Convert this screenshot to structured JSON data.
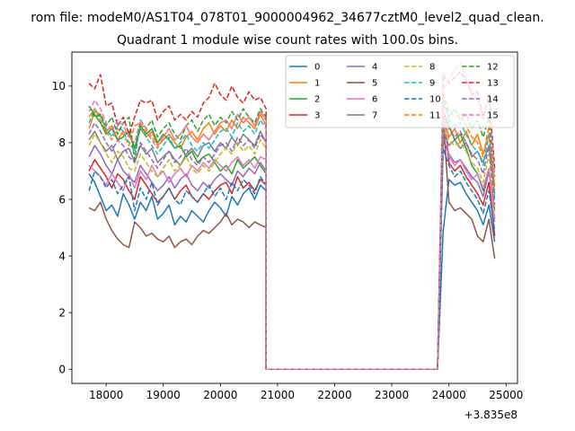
{
  "suptitle": "rom file: modeM0/AS1T04_078T01_9000004962_34677cztM0_level2_quad_clean.",
  "chart_data": {
    "type": "line",
    "title": "Quadrant 1 module wise count rates with 100.0s bins.",
    "xlabel": "",
    "ylabel": "",
    "x_offset_label": "+3.835e8",
    "x_range_data": [
      17700,
      24900
    ],
    "xlim": [
      17400,
      25200
    ],
    "ylim": [
      -0.5,
      11.2
    ],
    "xticks": [
      18000,
      19000,
      20000,
      21000,
      22000,
      23000,
      24000,
      25000
    ],
    "yticks": [
      0,
      2,
      4,
      6,
      8,
      10
    ],
    "grid": false,
    "legend_position": "upper-right",
    "gap_x_range": [
      20800,
      23800
    ],
    "series": [
      {
        "name": "0",
        "color": "#1f77b4",
        "dash": "solid",
        "before": [
          6.9,
          6.6,
          6.1,
          5.6,
          5.8,
          5.4,
          6.2,
          5.8,
          5.3,
          5.9,
          5.6,
          6.1,
          5.3,
          5.5,
          5.8,
          5.1,
          5.4,
          5.2,
          5.6,
          5.4,
          5.2,
          5.6,
          5.9,
          5.7,
          5.4,
          6.1,
          5.8,
          6.2,
          6.4,
          6.0,
          6.5,
          6.3
        ],
        "after": [
          4.9,
          6.7,
          6.5,
          6.6,
          6.2,
          5.9,
          5.6,
          5.1,
          5.8,
          4.5
        ]
      },
      {
        "name": "1",
        "color": "#ff7f0e",
        "dash": "solid",
        "before": [
          8.5,
          9.1,
          9.0,
          8.4,
          8.6,
          8.1,
          8.4,
          8.3,
          7.8,
          8.5,
          8.2,
          8.4,
          7.9,
          8.1,
          8.3,
          8.0,
          7.8,
          8.2,
          8.4,
          8.1,
          8.5,
          8.7,
          8.3,
          8.6,
          8.4,
          8.8,
          8.5,
          8.9,
          8.7,
          8.5,
          9.0,
          8.6
        ],
        "after": [
          9.0,
          8.2,
          8.5,
          8.0,
          8.4,
          7.9,
          8.3,
          7.6,
          8.3,
          6.5
        ]
      },
      {
        "name": "2",
        "color": "#2ca02c",
        "dash": "solid",
        "before": [
          9.3,
          9.0,
          8.7,
          8.3,
          8.5,
          8.1,
          8.2,
          8.4,
          7.8,
          8.6,
          8.3,
          8.5,
          8.0,
          8.3,
          8.1,
          7.8,
          7.9,
          7.5,
          7.7,
          7.3,
          7.5,
          7.6,
          7.3,
          7.0,
          7.2,
          6.9,
          7.4,
          7.1,
          7.3,
          7.5,
          7.2,
          6.9
        ],
        "after": [
          9.1,
          8.6,
          8.1,
          8.3,
          7.8,
          7.2,
          6.9,
          6.3,
          7.0,
          5.6
        ]
      },
      {
        "name": "3",
        "color": "#d62728",
        "dash": "solid",
        "before": [
          7.0,
          7.4,
          7.1,
          6.8,
          6.4,
          6.9,
          6.7,
          6.3,
          6.0,
          6.8,
          6.5,
          6.2,
          5.9,
          6.1,
          6.4,
          6.0,
          6.3,
          6.5,
          6.1,
          5.9,
          6.2,
          6.0,
          6.3,
          6.5,
          6.6,
          6.2,
          6.8,
          6.4,
          6.6,
          6.3,
          6.7,
          6.5
        ],
        "after": [
          9.3,
          7.3,
          7.0,
          7.2,
          6.8,
          6.5,
          6.2,
          5.8,
          6.6,
          4.7
        ]
      },
      {
        "name": "4",
        "color": "#9467bd",
        "dash": "solid",
        "before": [
          7.5,
          7.9,
          7.6,
          7.2,
          6.9,
          7.4,
          7.0,
          6.8,
          6.6,
          7.2,
          6.9,
          6.6,
          6.3,
          6.5,
          6.8,
          6.4,
          6.7,
          6.9,
          6.5,
          6.3,
          6.6,
          6.4,
          6.7,
          6.9,
          6.7,
          6.5,
          7.0,
          6.8,
          7.1,
          6.9,
          7.3,
          7.0
        ],
        "after": [
          8.1,
          7.6,
          7.3,
          7.4,
          7.1,
          6.8,
          6.6,
          6.1,
          7.0,
          5.3
        ]
      },
      {
        "name": "5",
        "color": "#8c564b",
        "dash": "solid",
        "before": [
          5.7,
          5.6,
          5.9,
          5.3,
          4.9,
          4.6,
          4.4,
          4.3,
          5.2,
          5.0,
          4.7,
          4.8,
          4.6,
          4.5,
          4.7,
          4.3,
          4.5,
          4.6,
          4.4,
          4.7,
          4.9,
          4.8,
          5.0,
          5.2,
          5.5,
          5.1,
          5.3,
          5.2,
          5.0,
          5.2,
          5.1,
          5.0
        ],
        "after": [
          8.8,
          5.9,
          5.6,
          5.7,
          5.5,
          5.3,
          4.7,
          4.5,
          5.3,
          3.9
        ]
      },
      {
        "name": "6",
        "color": "#e377c2",
        "dash": "solid",
        "before": [
          7.2,
          7.0,
          6.8,
          6.5,
          6.9,
          6.6,
          6.3,
          6.9,
          6.4,
          7.0,
          6.7,
          7.2,
          6.8,
          7.0,
          6.6,
          6.9,
          7.1,
          6.8,
          7.2,
          7.0,
          7.3,
          7.1,
          7.4,
          7.2,
          7.0,
          7.3,
          7.5,
          7.2,
          7.4,
          7.1,
          7.5,
          7.4
        ],
        "after": [
          9.2,
          7.5,
          7.2,
          7.4,
          7.0,
          6.7,
          6.9,
          6.4,
          7.1,
          5.2
        ]
      },
      {
        "name": "7",
        "color": "#7f7f7f",
        "dash": "solid",
        "before": [
          8.1,
          8.4,
          8.0,
          7.7,
          7.9,
          7.4,
          7.7,
          7.8,
          7.3,
          7.9,
          7.6,
          7.8,
          7.3,
          7.5,
          7.7,
          7.4,
          7.2,
          7.6,
          7.8,
          7.5,
          7.9,
          8.0,
          7.7,
          8.0,
          7.8,
          8.2,
          7.9,
          8.3,
          8.1,
          7.9,
          8.4,
          8.0
        ],
        "after": [
          8.4,
          7.9,
          8.1,
          7.8,
          8.0,
          7.5,
          7.7,
          7.3,
          7.9,
          6.2
        ]
      },
      {
        "name": "8",
        "color": "#bcbd22",
        "dash": "dashed",
        "before": [
          7.9,
          8.3,
          8.0,
          7.6,
          7.3,
          7.7,
          7.5,
          7.1,
          7.0,
          7.6,
          7.3,
          7.0,
          6.8,
          7.1,
          7.4,
          7.0,
          7.2,
          7.5,
          7.1,
          6.9,
          7.2,
          7.0,
          7.3,
          7.6,
          7.8,
          7.6,
          8.0,
          7.7,
          7.9,
          7.6,
          8.1,
          7.8
        ],
        "after": [
          8.6,
          8.1,
          7.9,
          8.0,
          7.7,
          7.3,
          7.1,
          6.6,
          7.6,
          5.6
        ]
      },
      {
        "name": "9",
        "color": "#17becf",
        "dash": "dashed",
        "before": [
          8.7,
          9.2,
          8.9,
          8.5,
          8.2,
          8.6,
          8.4,
          8.0,
          7.7,
          8.5,
          8.2,
          7.9,
          7.6,
          7.9,
          8.2,
          7.8,
          8.0,
          8.3,
          7.9,
          7.7,
          8.0,
          7.8,
          8.1,
          8.4,
          8.5,
          8.2,
          8.7,
          8.4,
          8.6,
          8.3,
          8.8,
          8.5
        ],
        "after": [
          9.5,
          8.8,
          8.6,
          8.7,
          8.3,
          7.9,
          7.7,
          7.2,
          8.3,
          6.0
        ]
      },
      {
        "name": "10",
        "color": "#1f77b4",
        "dash": "dashed",
        "before": [
          6.3,
          7.0,
          6.8,
          6.4,
          6.7,
          6.2,
          6.5,
          6.8,
          5.6,
          6.4,
          6.0,
          6.6,
          5.8,
          6.1,
          6.4,
          6.0,
          5.8,
          6.3,
          6.1,
          5.9,
          6.2,
          6.5,
          6.1,
          6.4,
          6.0,
          6.6,
          6.3,
          6.7,
          6.5,
          6.2,
          6.8,
          6.5
        ],
        "after": [
          7.8,
          7.2,
          6.8,
          7.0,
          6.6,
          6.3,
          6.0,
          5.5,
          6.3,
          4.9
        ]
      },
      {
        "name": "11",
        "color": "#ff7f0e",
        "dash": "dashed",
        "before": [
          8.9,
          9.2,
          8.8,
          8.4,
          8.1,
          8.5,
          8.3,
          7.9,
          8.6,
          8.7,
          8.4,
          8.1,
          7.8,
          8.2,
          8.5,
          8.1,
          8.3,
          8.6,
          8.2,
          8.0,
          8.3,
          8.1,
          8.4,
          8.7,
          8.8,
          8.5,
          9.0,
          8.7,
          8.9,
          8.6,
          9.1,
          8.8
        ],
        "after": [
          9.8,
          9.1,
          8.9,
          9.0,
          8.6,
          8.2,
          8.0,
          7.5,
          8.6,
          6.3
        ]
      },
      {
        "name": "12",
        "color": "#2ca02c",
        "dash": "dashed",
        "before": [
          9.3,
          8.9,
          9.0,
          8.6,
          8.9,
          8.3,
          8.7,
          8.9,
          7.4,
          8.8,
          8.5,
          8.8,
          8.2,
          8.5,
          8.7,
          8.3,
          8.1,
          8.6,
          8.8,
          8.4,
          8.8,
          9.0,
          8.6,
          8.9,
          8.7,
          9.1,
          8.8,
          9.2,
          8.9,
          8.7,
          9.2,
          8.9
        ],
        "after": [
          9.6,
          8.9,
          9.2,
          8.8,
          9.0,
          8.5,
          8.8,
          8.2,
          8.9,
          6.8
        ]
      },
      {
        "name": "13",
        "color": "#d62728",
        "dash": "dashed",
        "before": [
          10.1,
          9.9,
          10.4,
          9.3,
          9.4,
          8.6,
          8.9,
          8.3,
          8.9,
          9.5,
          9.4,
          9.5,
          8.8,
          9.1,
          9.3,
          8.8,
          9.0,
          8.8,
          9.1,
          8.9,
          9.4,
          9.6,
          10.1,
          9.7,
          9.5,
          10.0,
          9.6,
          9.4,
          9.8,
          9.5,
          9.6,
          9.2
        ],
        "after": [
          10.4,
          10.1,
          10.3,
          10.5,
          10.2,
          9.7,
          9.8,
          8.9,
          9.7,
          7.1
        ]
      },
      {
        "name": "14",
        "color": "#9467bd",
        "dash": "dashed",
        "before": [
          8.3,
          8.7,
          8.4,
          8.0,
          7.7,
          8.1,
          7.9,
          7.5,
          7.3,
          8.0,
          7.7,
          7.4,
          7.1,
          7.4,
          7.7,
          7.3,
          7.5,
          7.8,
          7.4,
          7.2,
          7.5,
          7.3,
          7.6,
          7.9,
          8.0,
          7.7,
          8.2,
          7.9,
          8.1,
          7.8,
          8.3,
          8.0
        ],
        "after": [
          9.0,
          8.5,
          8.2,
          8.4,
          8.0,
          7.6,
          7.4,
          6.9,
          7.9,
          5.8
        ]
      },
      {
        "name": "15",
        "color": "#e377c2",
        "dash": "dashed",
        "before": [
          9.1,
          9.5,
          9.2,
          8.7,
          8.4,
          8.8,
          8.6,
          8.2,
          8.0,
          8.8,
          8.5,
          8.2,
          7.9,
          8.2,
          8.5,
          8.1,
          8.3,
          8.6,
          8.2,
          8.0,
          8.3,
          8.1,
          8.4,
          8.7,
          8.8,
          8.5,
          9.0,
          8.7,
          8.9,
          8.6,
          9.1,
          8.8
        ],
        "after": [
          9.9,
          10.2,
          10.6,
          10.8,
          10.3,
          9.8,
          9.5,
          8.8,
          9.6,
          6.8
        ]
      }
    ]
  }
}
